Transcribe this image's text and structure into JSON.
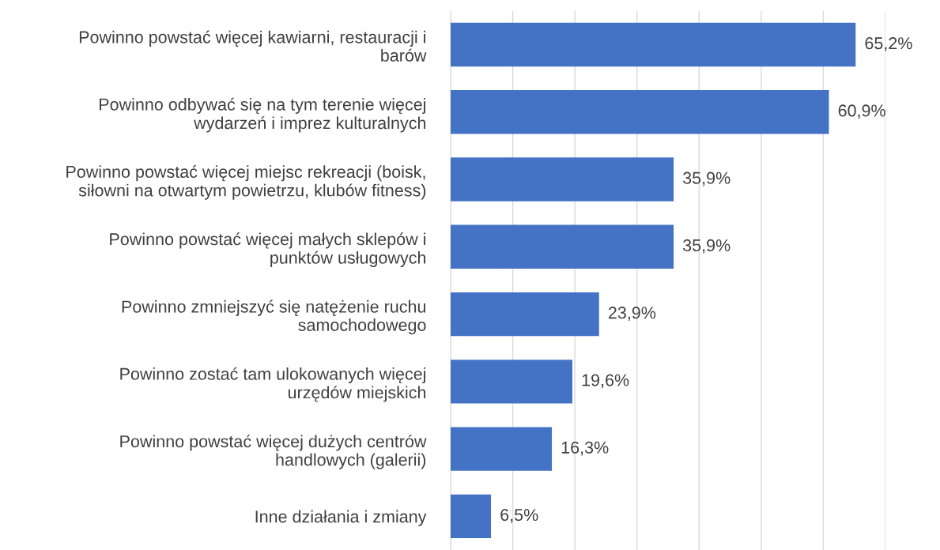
{
  "chart_data": {
    "type": "bar",
    "orientation": "horizontal",
    "categories": [
      "Powinno powstać więcej kawiarni, restauracji i\nbarów",
      "Powinno odbywać się na tym terenie więcej\nwydarzeń i imprez kulturalnych",
      "Powinno powstać więcej miejsc rekreacji (boisk,\nsiłowni na otwartym powietrzu, klubów fitness)",
      "Powinno powstać więcej małych sklepów i\npunktów usługowych",
      "Powinno zmniejszyć się natężenie ruchu\nsamochodowego",
      "Powinno zostać tam ulokowanych więcej\nurzędów miejskich",
      "Powinno powstać więcej dużych centrów\nhandlowych (galerii)",
      "Inne działania i zmiany"
    ],
    "values": [
      65.2,
      60.9,
      35.9,
      35.9,
      23.9,
      19.6,
      16.3,
      6.5
    ],
    "value_labels": [
      "65,2%",
      "60,9%",
      "35,9%",
      "35,9%",
      "23,9%",
      "19,6%",
      "16,3%",
      "6,5%"
    ],
    "color": "#4472c4",
    "xlim": [
      0,
      70
    ],
    "xticks": [
      {
        "value": 0,
        "label": null
      },
      {
        "value": 10,
        "label": null
      },
      {
        "value": 20,
        "label": null
      },
      {
        "value": 30,
        "label": null
      },
      {
        "value": 40,
        "label": null
      },
      {
        "value": 50,
        "label": null
      },
      {
        "value": 60,
        "label": null
      },
      {
        "value": 70,
        "label": null
      }
    ],
    "tick_labels": "y",
    "grid": "x",
    "legend": false
  }
}
